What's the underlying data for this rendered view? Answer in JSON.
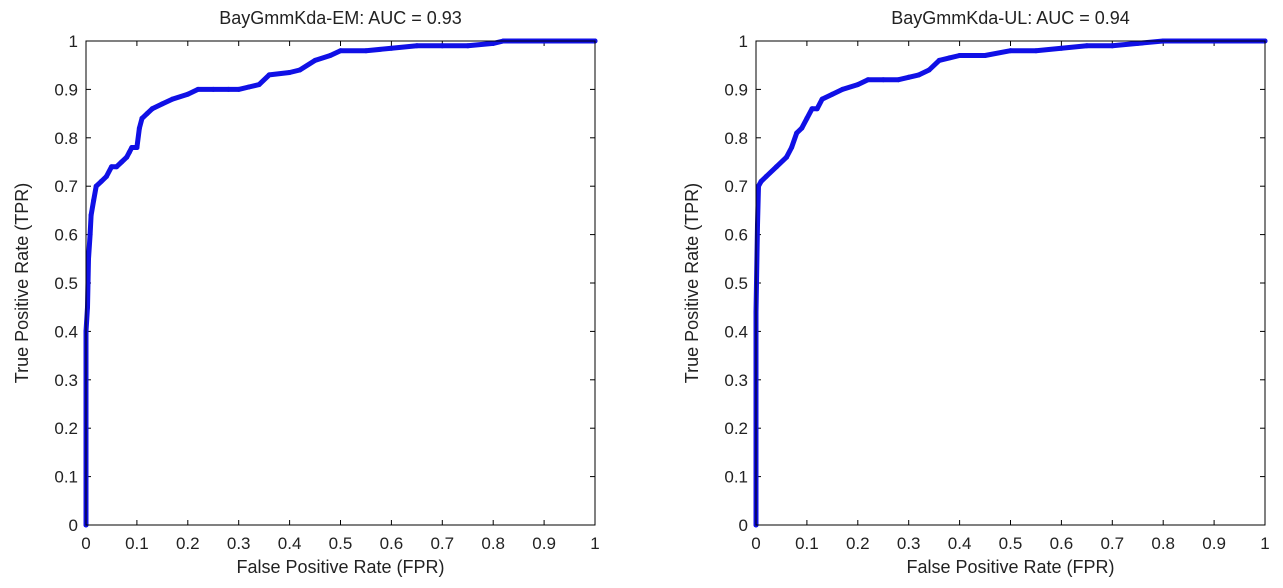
{
  "chart_data": [
    {
      "type": "line",
      "title": "BayGmmKda-EM: AUC = 0.93",
      "xlabel": "False Positive Rate (FPR)",
      "ylabel": "True Positive Rate (TPR)",
      "xlim": [
        0,
        1
      ],
      "ylim": [
        0,
        1
      ],
      "xticks": [
        "0",
        "0.1",
        "0.2",
        "0.3",
        "0.4",
        "0.5",
        "0.6",
        "0.7",
        "0.8",
        "0.9",
        "1"
      ],
      "yticks": [
        "0",
        "0.1",
        "0.2",
        "0.3",
        "0.4",
        "0.5",
        "0.6",
        "0.7",
        "0.8",
        "0.9",
        "1"
      ],
      "grid": false,
      "line_color": "#1010e6",
      "series": [
        {
          "x": [
            0,
            0,
            0.003,
            0.005,
            0.008,
            0.01,
            0.015,
            0.02,
            0.03,
            0.04,
            0.05,
            0.06,
            0.07,
            0.08,
            0.085,
            0.09,
            0.1,
            0.105,
            0.11,
            0.12,
            0.13,
            0.15,
            0.17,
            0.2,
            0.22,
            0.25,
            0.28,
            0.3,
            0.32,
            0.34,
            0.36,
            0.4,
            0.42,
            0.45,
            0.48,
            0.5,
            0.55,
            0.6,
            0.65,
            0.7,
            0.75,
            0.8,
            0.82,
            0.85,
            0.9,
            1.0
          ],
          "y": [
            0,
            0.4,
            0.45,
            0.55,
            0.6,
            0.64,
            0.67,
            0.7,
            0.71,
            0.72,
            0.74,
            0.74,
            0.75,
            0.76,
            0.77,
            0.78,
            0.78,
            0.82,
            0.84,
            0.85,
            0.86,
            0.87,
            0.88,
            0.89,
            0.9,
            0.9,
            0.9,
            0.9,
            0.905,
            0.91,
            0.93,
            0.935,
            0.94,
            0.96,
            0.97,
            0.98,
            0.98,
            0.985,
            0.99,
            0.99,
            0.99,
            0.995,
            1.0,
            1.0,
            1.0,
            1.0
          ]
        }
      ]
    },
    {
      "type": "line",
      "title": "BayGmmKda-UL: AUC = 0.94",
      "xlabel": "False Positive Rate (FPR)",
      "ylabel": "True Positive Rate (TPR)",
      "xlim": [
        0,
        1
      ],
      "ylim": [
        0,
        1
      ],
      "xticks": [
        "0",
        "0.1",
        "0.2",
        "0.3",
        "0.4",
        "0.5",
        "0.6",
        "0.7",
        "0.8",
        "0.9",
        "1"
      ],
      "yticks": [
        "0",
        "0.1",
        "0.2",
        "0.3",
        "0.4",
        "0.5",
        "0.6",
        "0.7",
        "0.8",
        "0.9",
        "1"
      ],
      "grid": false,
      "line_color": "#1010e6",
      "series": [
        {
          "x": [
            0,
            0,
            0.003,
            0.005,
            0.01,
            0.02,
            0.04,
            0.06,
            0.07,
            0.08,
            0.09,
            0.1,
            0.11,
            0.12,
            0.13,
            0.15,
            0.17,
            0.2,
            0.22,
            0.25,
            0.28,
            0.3,
            0.32,
            0.34,
            0.36,
            0.38,
            0.4,
            0.45,
            0.5,
            0.55,
            0.6,
            0.65,
            0.7,
            0.75,
            0.8,
            0.85,
            0.9,
            1.0
          ],
          "y": [
            0,
            0.44,
            0.62,
            0.7,
            0.71,
            0.72,
            0.74,
            0.76,
            0.78,
            0.81,
            0.82,
            0.84,
            0.86,
            0.86,
            0.88,
            0.89,
            0.9,
            0.91,
            0.92,
            0.92,
            0.92,
            0.925,
            0.93,
            0.94,
            0.96,
            0.965,
            0.97,
            0.97,
            0.98,
            0.98,
            0.985,
            0.99,
            0.99,
            0.995,
            1.0,
            1.0,
            1.0,
            1.0
          ]
        }
      ]
    }
  ]
}
